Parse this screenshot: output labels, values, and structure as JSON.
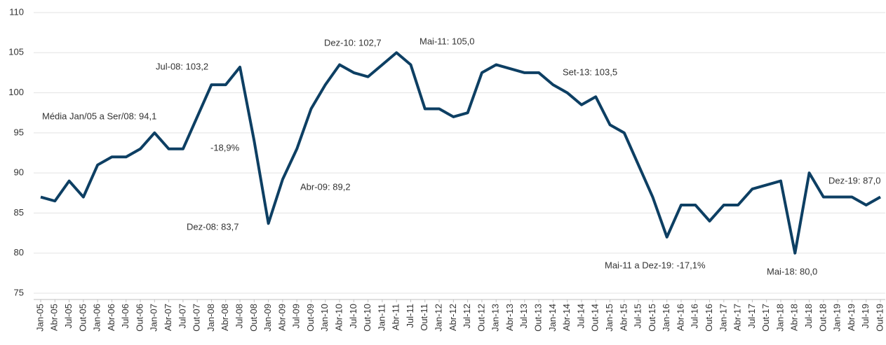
{
  "chart_data": {
    "type": "line",
    "categories": [
      "Jan-05",
      "Abr-05",
      "Jul-05",
      "Out-05",
      "Jan-06",
      "Abr-06",
      "Jul-06",
      "Out-06",
      "Jan-07",
      "Abr-07",
      "Jul-07",
      "Out-07",
      "Jan-08",
      "Abr-08",
      "Jul-08",
      "Out-08",
      "Jan-09",
      "Abr-09",
      "Jul-09",
      "Out-09",
      "Jan-10",
      "Abr-10",
      "Jul-10",
      "Out-10",
      "Jan-11",
      "Abr-11",
      "Jul-11",
      "Out-11",
      "Jan-12",
      "Abr-12",
      "Jul-12",
      "Out-12",
      "Jan-13",
      "Abr-13",
      "Jul-13",
      "Out-13",
      "Jan-14",
      "Abr-14",
      "Jul-14",
      "Out-14",
      "Jan-15",
      "Abr-15",
      "Jul-15",
      "Out-15",
      "Jan-16",
      "Abr-16",
      "Jul-16",
      "Out-16",
      "Jan-17",
      "Abr-17",
      "Jul-17",
      "Out-17",
      "Jan-18",
      "Abr-18",
      "Jul-18",
      "Out-18",
      "Jan-19",
      "Abr-19",
      "Jul-19",
      "Out-19"
    ],
    "values": [
      87,
      86.5,
      89,
      87,
      91,
      92,
      92,
      93,
      95,
      93,
      93,
      97,
      101,
      101,
      103.2,
      94,
      83.7,
      89.2,
      93,
      98,
      101,
      103.5,
      102.5,
      102,
      103.5,
      105,
      103.5,
      98,
      98,
      97,
      97.5,
      102.5,
      103.5,
      103,
      102.5,
      102.5,
      101,
      100,
      98.5,
      99.5,
      96,
      95,
      91,
      87,
      82,
      86,
      86,
      84,
      86,
      86,
      88,
      88.5,
      89,
      80,
      90,
      87,
      87,
      87,
      86,
      87
    ],
    "color": "#0d3f63",
    "ylim": [
      75,
      110
    ],
    "yticks": [
      75,
      80,
      85,
      90,
      95,
      100,
      105,
      110
    ],
    "grid": true,
    "annotations": [
      "Média Jan/05 a Ser/08: 94,1",
      "Jul-08: 103,2",
      "-18,9%",
      "Dez-08: 83,7",
      "Abr-09: 89,2",
      "Dez-10: 102,7",
      "Mai-11: 105,0",
      "Set-13: 103,5",
      "Mai-11 a Dez-19: -17,1%",
      "Mai-18: 80,0",
      "Dez-19: 87,0"
    ]
  }
}
